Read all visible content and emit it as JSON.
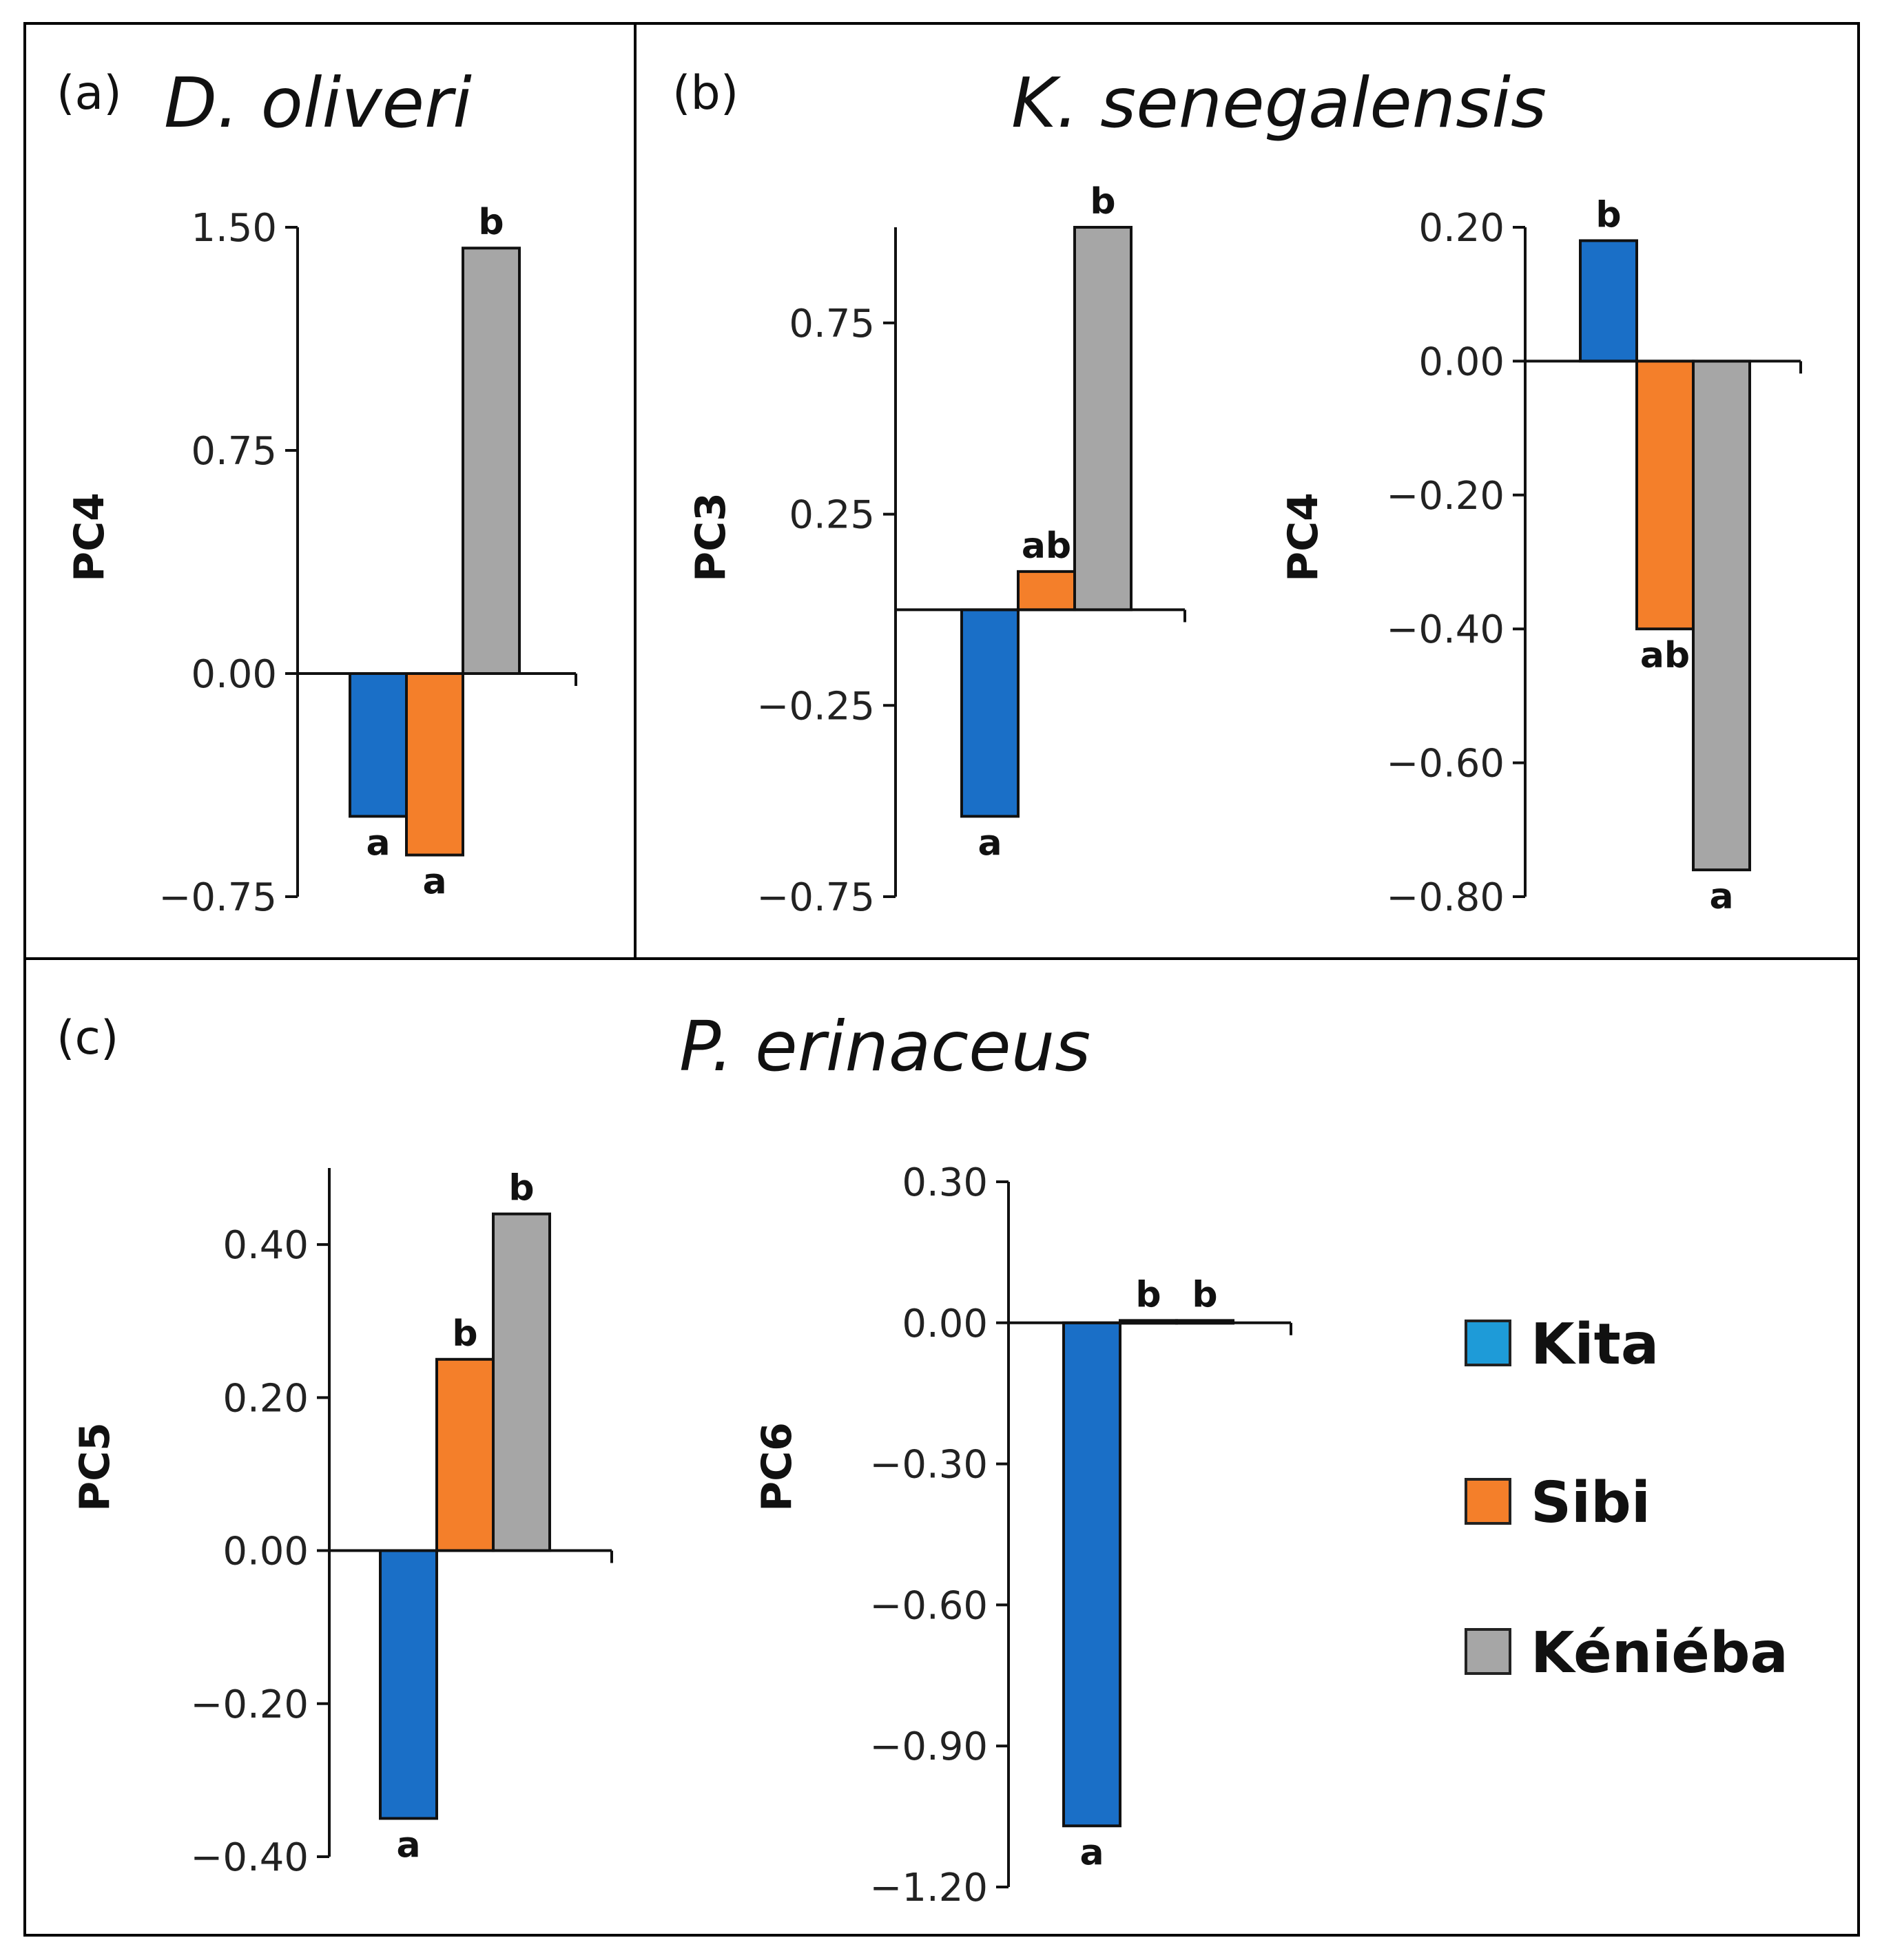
{
  "colors": {
    "Kita": "#1a6fc7",
    "Sibi": "#f47f2a",
    "Kéniéba": "#a6a6a6",
    "frame": "#000000"
  },
  "panels": {
    "a": {
      "label": "(a)",
      "title": "D. oliveri"
    },
    "b": {
      "label": "(b)",
      "title": "K. senegalensis"
    },
    "c": {
      "label": "(c)",
      "title": "P. erinaceus"
    }
  },
  "legend": [
    {
      "name": "Kita",
      "label": "Kita"
    },
    {
      "name": "Sibi",
      "label": "Sibi"
    },
    {
      "name": "Kéniéba",
      "label": "Kéniéba"
    }
  ],
  "chart_data": [
    {
      "type": "bar",
      "panel": "a",
      "title": "D. oliveri",
      "ylabel": "PC4",
      "categories": [
        "Kita",
        "Sibi",
        "Kéniéba"
      ],
      "values": [
        -0.48,
        -0.61,
        1.43
      ],
      "significance": [
        "a",
        "a",
        "b"
      ],
      "ylim": [
        -0.75,
        1.5
      ],
      "yticks": [
        1.5,
        0.75,
        0.0,
        -0.75
      ],
      "ytick_labels": [
        "1.50",
        "0.75",
        "0.00",
        "−0.75"
      ]
    },
    {
      "type": "bar",
      "panel": "b",
      "title": "K. senegalensis",
      "ylabel": "PC3",
      "categories": [
        "Kita",
        "Sibi",
        "Kéniéba"
      ],
      "values": [
        -0.54,
        0.1,
        1.0
      ],
      "significance": [
        "a",
        "ab",
        "b"
      ],
      "ylim": [
        -0.75,
        1.0
      ],
      "yticks": [
        0.75,
        0.25,
        -0.25,
        -0.75
      ],
      "ytick_labels": [
        "0.75",
        "0.25",
        "−0.25",
        "−0.75"
      ]
    },
    {
      "type": "bar",
      "panel": "b",
      "title": "K. senegalensis",
      "ylabel": "PC4",
      "categories": [
        "Kita",
        "Sibi",
        "Kéniéba"
      ],
      "values": [
        0.18,
        -0.4,
        -0.76
      ],
      "significance": [
        "b",
        "ab",
        "a"
      ],
      "ylim": [
        -0.8,
        0.2
      ],
      "yticks": [
        0.2,
        0.0,
        -0.2,
        -0.4,
        -0.6,
        -0.8
      ],
      "ytick_labels": [
        "0.20",
        "0.00",
        "−0.20",
        "−0.40",
        "−0.60",
        "−0.80"
      ]
    },
    {
      "type": "bar",
      "panel": "c",
      "title": "P. erinaceus",
      "ylabel": "PC5",
      "categories": [
        "Kita",
        "Sibi",
        "Kéniéba"
      ],
      "values": [
        -0.35,
        0.25,
        0.44
      ],
      "significance": [
        "a",
        "b",
        "b"
      ],
      "ylim": [
        -0.4,
        0.5
      ],
      "yticks": [
        0.4,
        0.2,
        0.0,
        -0.2,
        -0.4
      ],
      "ytick_labels": [
        "0.40",
        "0.20",
        "0.00",
        "−0.20",
        "−0.40"
      ]
    },
    {
      "type": "bar",
      "panel": "c",
      "title": "P. erinaceus",
      "ylabel": "PC6",
      "categories": [
        "Kita",
        "Sibi",
        "Kéniéba"
      ],
      "values": [
        -1.07,
        0.005,
        0.005
      ],
      "significance": [
        "a",
        "b",
        "b"
      ],
      "ylim": [
        -1.2,
        0.3
      ],
      "yticks": [
        0.3,
        0.0,
        -0.3,
        -0.6,
        -0.9,
        -1.2
      ],
      "ytick_labels": [
        "0.30",
        "0.00",
        "−0.30",
        "−0.60",
        "−0.90",
        "−1.20"
      ]
    }
  ]
}
